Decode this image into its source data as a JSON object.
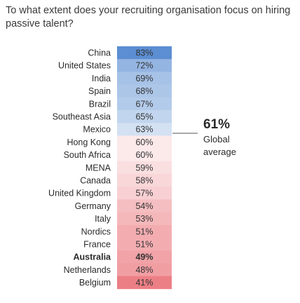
{
  "question": "To what extent does your recruiting organisation focus on hiring passive talent?",
  "chart_data": {
    "type": "bar",
    "orientation": "horizontal-heat-column",
    "categories": [
      "China",
      "United States",
      "India",
      "Spain",
      "Brazil",
      "Southeast Asia",
      "Mexico",
      "Hong Kong",
      "South Africa",
      "MENA",
      "Canada",
      "United Kingdom",
      "Germany",
      "Italy",
      "Nordics",
      "France",
      "Australia",
      "Netherlands",
      "Belgium"
    ],
    "value_labels": [
      "83%",
      "72%",
      "69%",
      "68%",
      "67%",
      "65%",
      "63%",
      "60%",
      "60%",
      "59%",
      "58%",
      "57%",
      "54%",
      "53%",
      "51%",
      "51%",
      "49%",
      "48%",
      "41%"
    ],
    "values": [
      83,
      72,
      69,
      68,
      67,
      65,
      63,
      60,
      60,
      59,
      58,
      57,
      54,
      53,
      51,
      51,
      49,
      48,
      41
    ],
    "highlighted_category": "Australia",
    "global_average": {
      "value": 61,
      "value_label": "61%",
      "label_line1": "Global",
      "label_line2": "average"
    },
    "colors": {
      "high": "#5b8ed2",
      "mid": "#ffffff",
      "low": "#ec7f85"
    }
  }
}
